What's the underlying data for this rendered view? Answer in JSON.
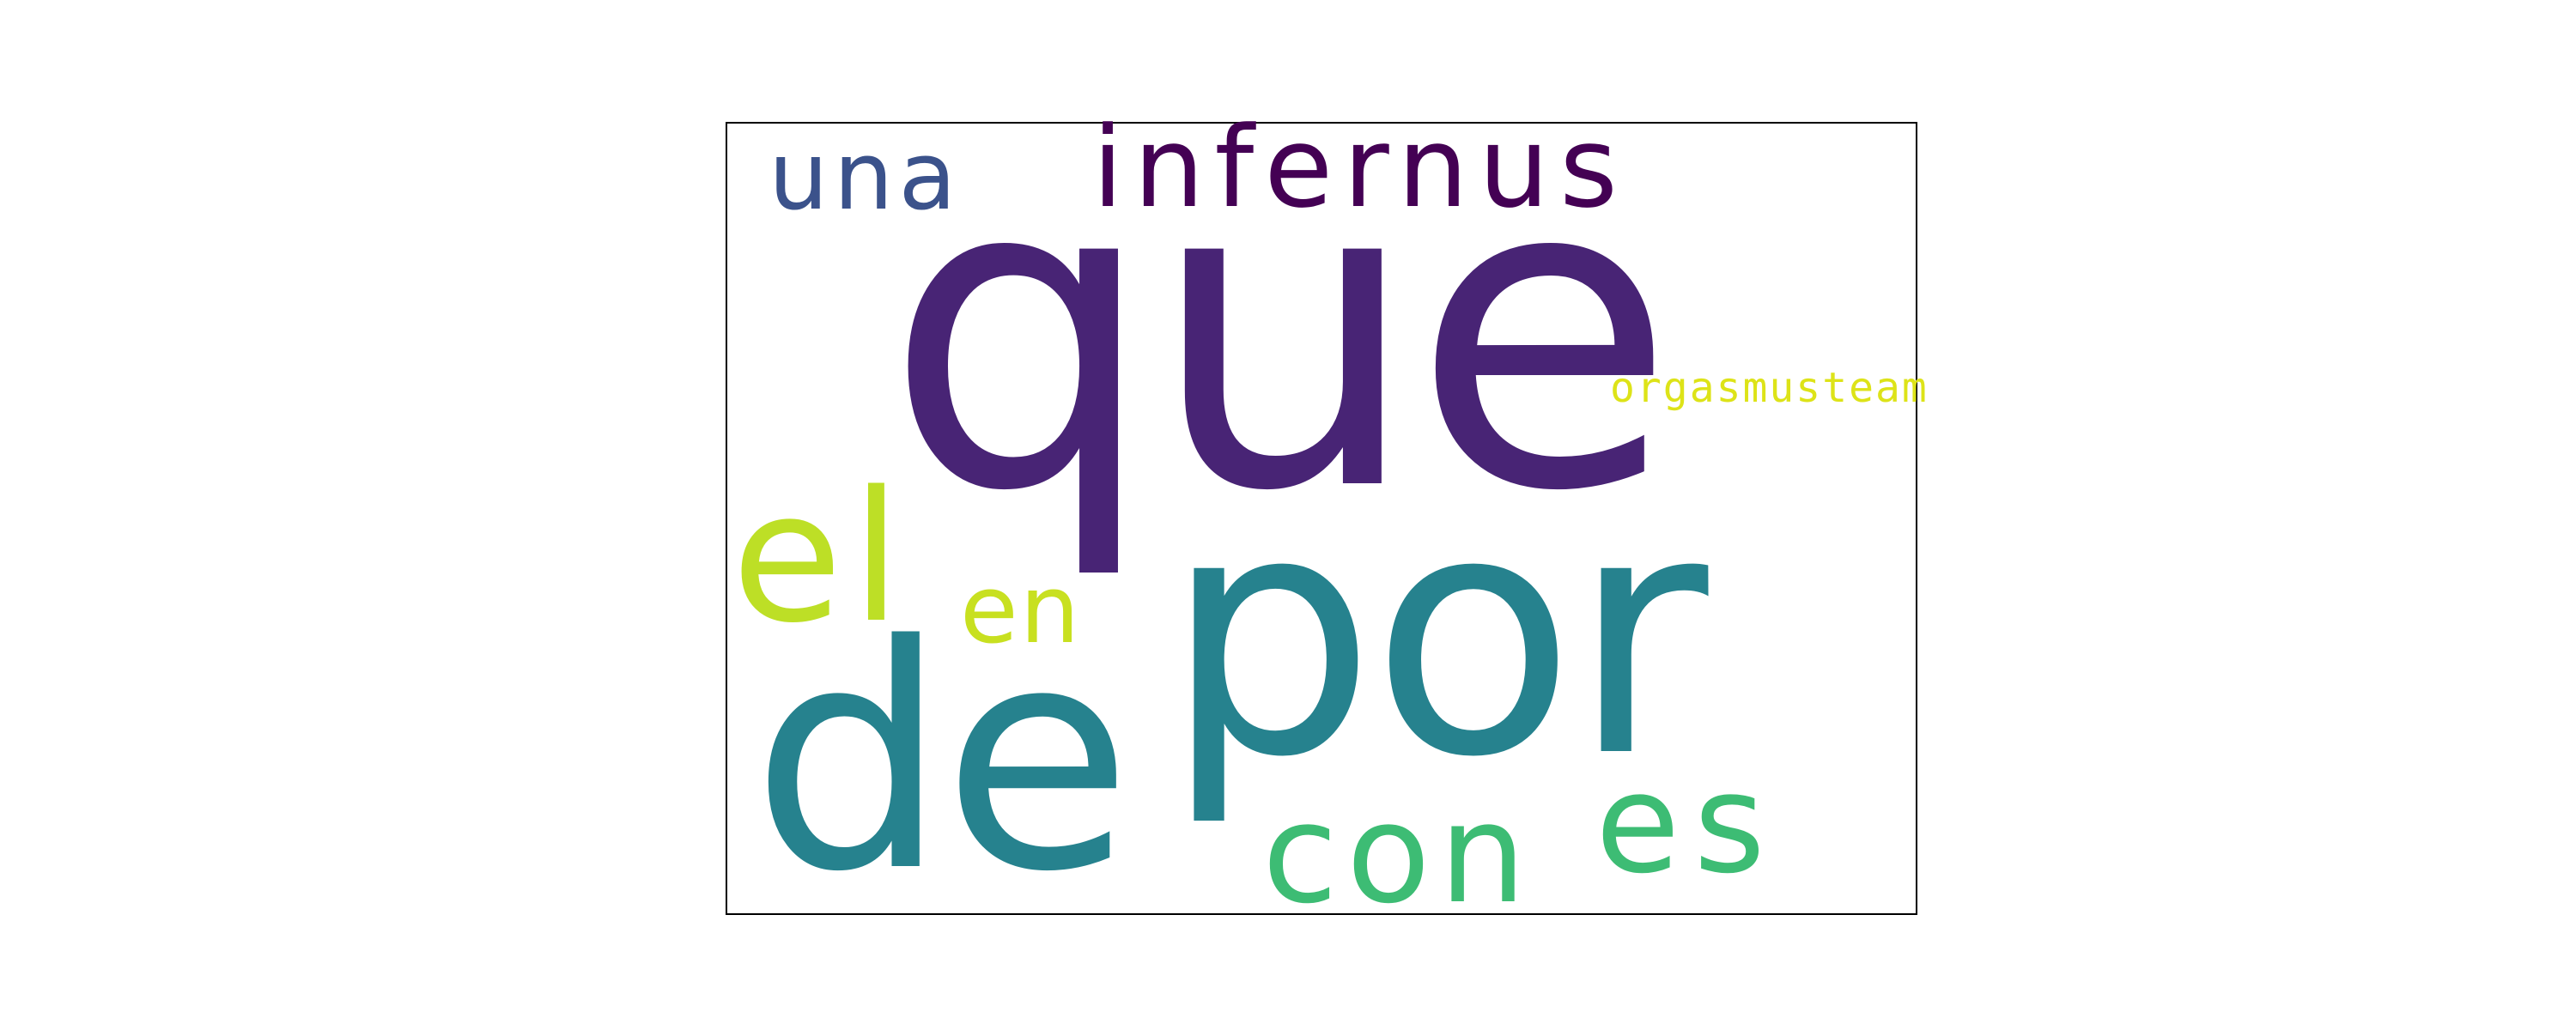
{
  "words": [
    {
      "text": "que",
      "color": "#482475"
    },
    {
      "text": "por",
      "color": "#26828e"
    },
    {
      "text": "de",
      "color": "#26828e"
    },
    {
      "text": "una",
      "color": "#3b528b"
    },
    {
      "text": "infernus",
      "color": "#440154"
    },
    {
      "text": "el",
      "color": "#bddf26"
    },
    {
      "text": "en",
      "color": "#c8e020"
    },
    {
      "text": "con",
      "color": "#3dbc74"
    },
    {
      "text": "es",
      "color": "#3dbc74"
    },
    {
      "text": "orgasmusteam",
      "color": "#dde318"
    }
  ]
}
